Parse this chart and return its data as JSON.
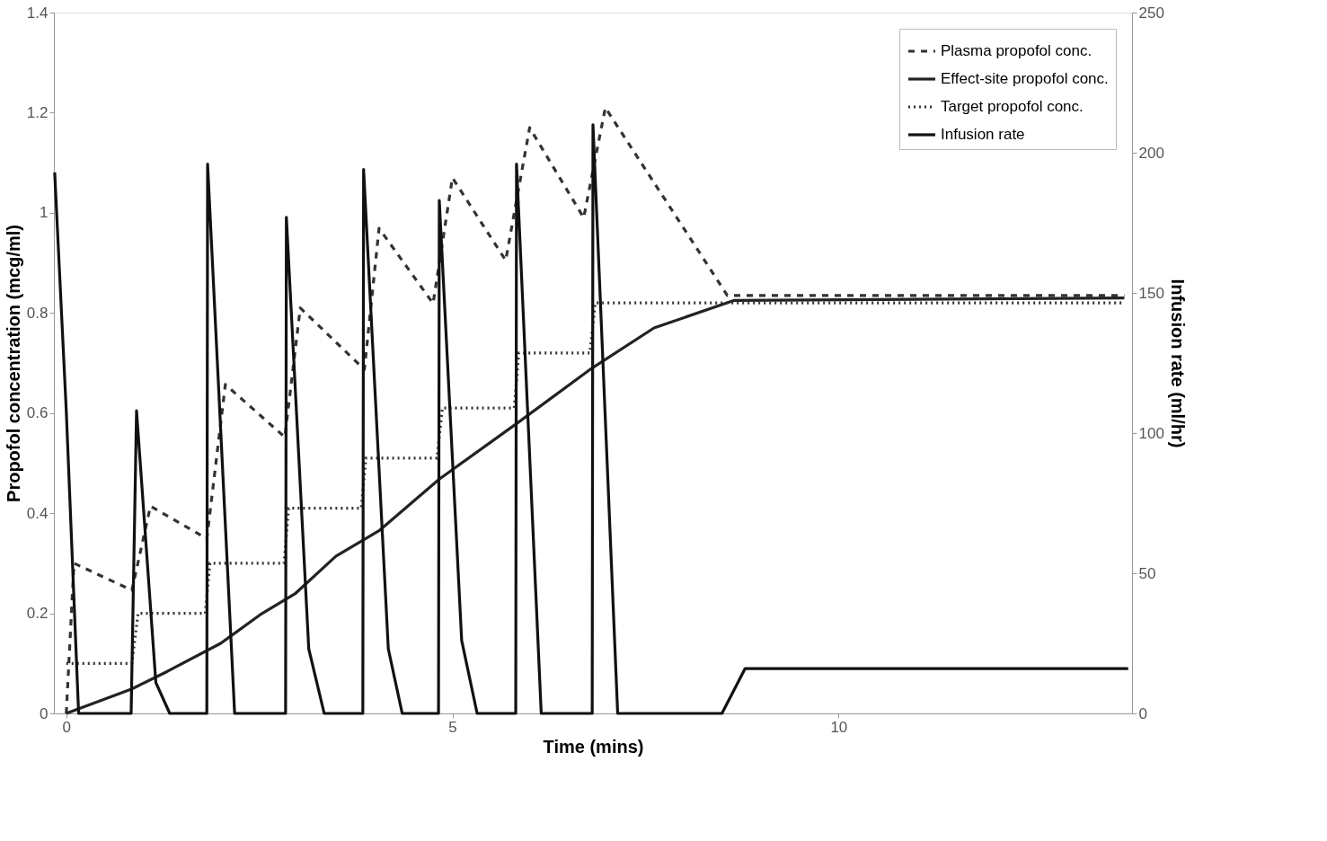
{
  "chart_data": {
    "type": "line",
    "xlabel": "Time (mins)",
    "ylabel": "Propofol concentration (mcg/ml)",
    "y2label": "Infusion rate (ml/hr)",
    "xlim": [
      -0.16,
      13.8
    ],
    "xticks": [
      0,
      5,
      10
    ],
    "ylim": [
      0,
      1.4
    ],
    "yticks": [
      0,
      0.2,
      0.4,
      0.6,
      0.8,
      1,
      1.2,
      1.4
    ],
    "y2lim": [
      0,
      250
    ],
    "y2ticks": [
      0,
      50,
      100,
      150,
      200,
      250
    ],
    "grid": false,
    "legend": "top right",
    "marker": "none",
    "series": [
      {
        "name": "Plasma propofol conc.",
        "color": "#333333",
        "line_style": "dashed",
        "x": [
          0,
          0.1,
          0.85,
          1.09,
          1.82,
          2.06,
          2.83,
          3.03,
          3.86,
          4.05,
          4.75,
          5.0,
          5.69,
          6.0,
          6.7,
          6.98,
          8.56,
          13.7
        ],
        "values": [
          0,
          0.3,
          0.246,
          0.414,
          0.349,
          0.657,
          0.552,
          0.81,
          0.687,
          0.969,
          0.819,
          1.07,
          0.905,
          1.17,
          0.99,
          1.21,
          0.835,
          0.835
        ]
      },
      {
        "name": "Effect-site propofol conc.",
        "color": "#222222",
        "line_style": "solid",
        "x": [
          0,
          0.85,
          1.31,
          2.0,
          2.51,
          2.97,
          3.49,
          4.06,
          4.83,
          5.84,
          6.81,
          7.61,
          8.65,
          13.7
        ],
        "values": [
          0,
          0.049,
          0.084,
          0.14,
          0.197,
          0.24,
          0.314,
          0.366,
          0.468,
          0.58,
          0.69,
          0.77,
          0.825,
          0.83
        ]
      },
      {
        "name": "Target propofol conc.",
        "color": "#333333",
        "line_style": "dotted",
        "x": [
          0,
          0.85,
          0.93,
          1.8,
          1.86,
          2.82,
          2.88,
          3.82,
          3.88,
          4.8,
          4.87,
          5.8,
          5.86,
          6.78,
          6.85,
          13.7
        ],
        "values": [
          0.1,
          0.1,
          0.2,
          0.2,
          0.3,
          0.3,
          0.41,
          0.41,
          0.51,
          0.51,
          0.61,
          0.61,
          0.72,
          0.72,
          0.82,
          0.82
        ]
      },
      {
        "name": "Infusion rate",
        "color": "#111111",
        "line_style": "solid",
        "axis": "y2",
        "x": [
          -0.15,
          0.0,
          0.16,
          0.84,
          0.91,
          1.16,
          1.34,
          1.82,
          1.83,
          2.18,
          2.84,
          2.85,
          3.14,
          3.34,
          3.84,
          3.85,
          4.17,
          4.35,
          4.82,
          4.83,
          5.12,
          5.32,
          5.82,
          5.83,
          6.15,
          6.81,
          6.82,
          7.14,
          8.49,
          8.79,
          13.75
        ],
        "values": [
          193,
          108,
          0,
          0,
          108,
          11,
          0,
          0,
          196,
          0,
          0,
          177,
          23,
          0,
          0,
          194,
          23,
          0,
          0,
          183,
          26,
          0,
          0,
          196,
          0,
          0,
          210,
          0,
          0,
          16,
          16
        ]
      }
    ]
  }
}
